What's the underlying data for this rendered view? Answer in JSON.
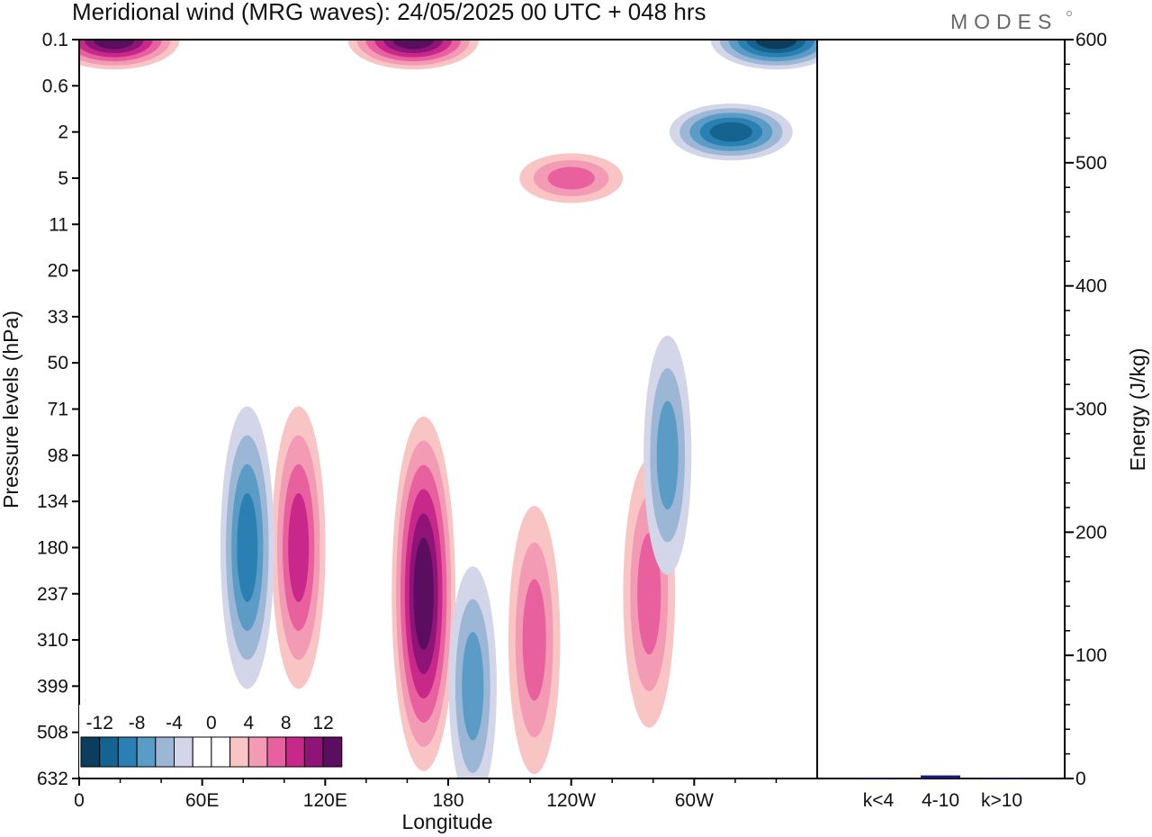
{
  "title": "Meridional wind (MRG waves):  24/05/2025  00 UTC  + 048 hrs",
  "brand": "MODES",
  "chart_data": [
    {
      "type": "heatmap",
      "variable": "Meridional wind (MRG waves)",
      "xlabel": "Longitude",
      "ylabel": "Pressure levels (hPa)",
      "x_ticks": [
        "0",
        "60E",
        "120E",
        "180",
        "120W",
        "60W"
      ],
      "x_range": [
        0,
        360
      ],
      "y_ticks": [
        "0.1",
        "0.6",
        "2",
        "5",
        "11",
        "20",
        "33",
        "50",
        "71",
        "98",
        "134",
        "180",
        "237",
        "310",
        "399",
        "508",
        "632"
      ],
      "y_scale": "pressure levels, top 0.1 to bottom 632",
      "colorbar": {
        "labels": [
          "-12",
          "-8",
          "-4",
          "0",
          "4",
          "8",
          "12"
        ],
        "levels": [
          -14,
          -12,
          -10,
          -8,
          -6,
          -4,
          -2,
          0,
          2,
          4,
          6,
          8,
          10,
          12,
          14
        ],
        "colors": [
          "#0b3d5c",
          "#14648f",
          "#2b80b3",
          "#5a9cc6",
          "#9cb6d6",
          "#d3d5e8",
          "#ffffff",
          "#ffffff",
          "#f8c4c4",
          "#f39ab4",
          "#e8609e",
          "#c8288a",
          "#8f1478",
          "#5b0e60"
        ]
      },
      "features": [
        {
          "type": "positive",
          "lon": 168,
          "level": "237",
          "peak": 14
        },
        {
          "type": "positive",
          "lon": 107,
          "level": "180",
          "peak": 9
        },
        {
          "type": "positive",
          "lon": 278,
          "level": "237",
          "peak": 8
        },
        {
          "type": "positive",
          "lon": 222,
          "level": "310",
          "peak": 8
        },
        {
          "type": "negative",
          "lon": 82,
          "level": "180",
          "peak": -9
        },
        {
          "type": "negative",
          "lon": 287,
          "level": "98",
          "peak": -6
        },
        {
          "type": "negative",
          "lon": 192,
          "level": "399",
          "peak": -6
        },
        {
          "type": "positive",
          "lon": 240,
          "level": "5",
          "peak": 7
        },
        {
          "type": "positive",
          "lon": 17,
          "level": "0.1",
          "peak": 14
        },
        {
          "type": "positive",
          "lon": 163,
          "level": "0.1",
          "peak": 14
        },
        {
          "type": "negative",
          "lon": 340,
          "level": "0.1",
          "peak": -14
        },
        {
          "type": "negative",
          "lon": 318,
          "level": "2",
          "peak": -12
        }
      ]
    },
    {
      "type": "bar",
      "ylabel": "Energy (J/kg)",
      "categories": [
        "k<4",
        "4-10",
        "k>10"
      ],
      "values": [
        0.8,
        2.5,
        0.4
      ],
      "ylim": [
        0,
        600
      ],
      "y_ticks": [
        "0",
        "100",
        "200",
        "300",
        "400",
        "500",
        "600"
      ],
      "color": "#1a1a7a"
    }
  ]
}
